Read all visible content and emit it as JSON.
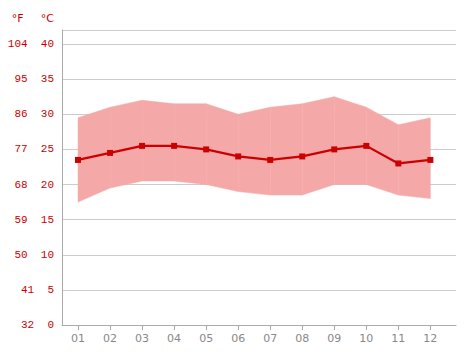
{
  "chart_data": {
    "type": "line",
    "x": [
      1,
      2,
      3,
      4,
      5,
      6,
      7,
      8,
      9,
      10,
      11,
      12
    ],
    "xlim": [
      0.5,
      12.8
    ],
    "xticks": [
      {
        "value": 1,
        "label": "01"
      },
      {
        "value": 2,
        "label": "02"
      },
      {
        "value": 3,
        "label": "03"
      },
      {
        "value": 4,
        "label": "04"
      },
      {
        "value": 5,
        "label": "05"
      },
      {
        "value": 6,
        "label": "06"
      },
      {
        "value": 7,
        "label": "07"
      },
      {
        "value": 8,
        "label": "08"
      },
      {
        "value": 9,
        "label": "09"
      },
      {
        "value": 10,
        "label": "10"
      },
      {
        "value": 11,
        "label": "11"
      },
      {
        "value": 12,
        "label": "12"
      }
    ],
    "ylim": [
      0,
      42
    ],
    "yticks": [
      {
        "value": 0,
        "label": "32  0"
      },
      {
        "value": 5,
        "label": "41  5"
      },
      {
        "value": 10,
        "label": "50  10"
      },
      {
        "value": 15,
        "label": "59  15"
      },
      {
        "value": 20,
        "label": "68  20"
      },
      {
        "value": 25,
        "label": "77  25"
      },
      {
        "value": 30,
        "label": "86  30"
      },
      {
        "value": 35,
        "label": "95  35"
      },
      {
        "value": 40,
        "label": "104  40"
      }
    ],
    "series": [
      {
        "type": "band",
        "color": "#f4a9a8",
        "low": [
          17.5,
          19.5,
          20.5,
          20.5,
          20.0,
          19.0,
          18.5,
          18.5,
          20.0,
          20.0,
          18.5,
          18.0
        ],
        "high": [
          29.5,
          31.0,
          32.0,
          31.5,
          31.5,
          30.0,
          31.0,
          31.5,
          32.5,
          31.0,
          28.5,
          29.5
        ]
      },
      {
        "type": "line",
        "color": "#cc0000",
        "marker": "square",
        "values": [
          23.5,
          24.5,
          25.5,
          25.5,
          25.0,
          24.0,
          23.5,
          24.0,
          25.0,
          25.5,
          23.0,
          23.5
        ]
      }
    ],
    "annotations": [
      "°F",
      "°C"
    ],
    "grid": true
  }
}
